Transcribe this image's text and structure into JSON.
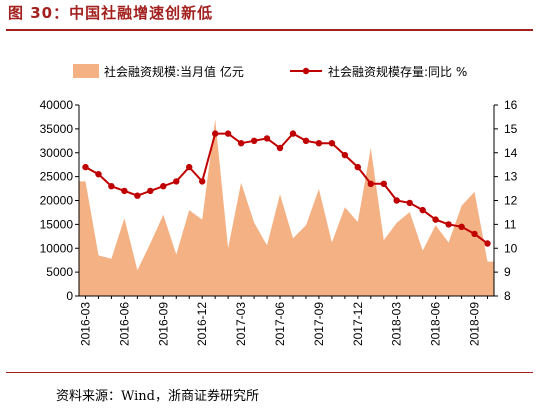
{
  "figure": {
    "title": "图 30：中国社融增速创新低",
    "source": "资料来源：Wind，浙商证券研究所"
  },
  "colors": {
    "accent": "#a2211f",
    "area_fill": "#f4b183",
    "line": "#c00000"
  },
  "chart_data": {
    "type": "area",
    "x": [
      "2016-03",
      "2016-04",
      "2016-05",
      "2016-06",
      "2016-07",
      "2016-08",
      "2016-09",
      "2016-10",
      "2016-11",
      "2016-12",
      "2017-01",
      "2017-02",
      "2017-03",
      "2017-04",
      "2017-05",
      "2017-06",
      "2017-07",
      "2017-08",
      "2017-09",
      "2017-10",
      "2017-11",
      "2017-12",
      "2018-01",
      "2018-02",
      "2018-03",
      "2018-04",
      "2018-05",
      "2018-06",
      "2018-07",
      "2018-08",
      "2018-09",
      "2018-10"
    ],
    "x_tick_labels": [
      "2016-03",
      "2016-06",
      "2016-09",
      "2016-12",
      "2017-03",
      "2017-06",
      "2017-09",
      "2017-12",
      "2018-03",
      "2018-06",
      "2018-09"
    ],
    "series": [
      {
        "name": "社会融资规模:当月值 亿元",
        "type": "area",
        "axis": "left",
        "values": [
          24000,
          8500,
          7800,
          16300,
          5400,
          11000,
          17000,
          8700,
          18000,
          16000,
          37000,
          10000,
          23700,
          15400,
          10600,
          21300,
          12100,
          14800,
          22400,
          11200,
          18600,
          15500,
          31000,
          11700,
          15300,
          17600,
          9500,
          14800,
          11200,
          18900,
          21800,
          7200
        ]
      },
      {
        "name": "社会融资规模存量:同比 %",
        "type": "line",
        "axis": "right",
        "values": [
          13.4,
          13.1,
          12.6,
          12.4,
          12.2,
          12.4,
          12.6,
          12.8,
          13.4,
          12.8,
          14.8,
          14.8,
          14.4,
          14.5,
          14.6,
          14.2,
          14.8,
          14.5,
          14.4,
          14.4,
          13.9,
          13.4,
          12.7,
          12.7,
          12.0,
          11.9,
          11.6,
          11.2,
          11.0,
          10.9,
          10.6,
          10.2
        ]
      }
    ],
    "y_left": {
      "ylim": [
        0,
        40000
      ],
      "ticks": [
        "0",
        "5000",
        "10000",
        "15000",
        "20000",
        "25000",
        "30000",
        "35000",
        "40000"
      ]
    },
    "y_right": {
      "ylim": [
        8,
        16
      ],
      "ticks": [
        "8",
        "9",
        "10",
        "11",
        "12",
        "13",
        "14",
        "15",
        "16"
      ]
    },
    "legend_position": "top",
    "grid": false
  }
}
